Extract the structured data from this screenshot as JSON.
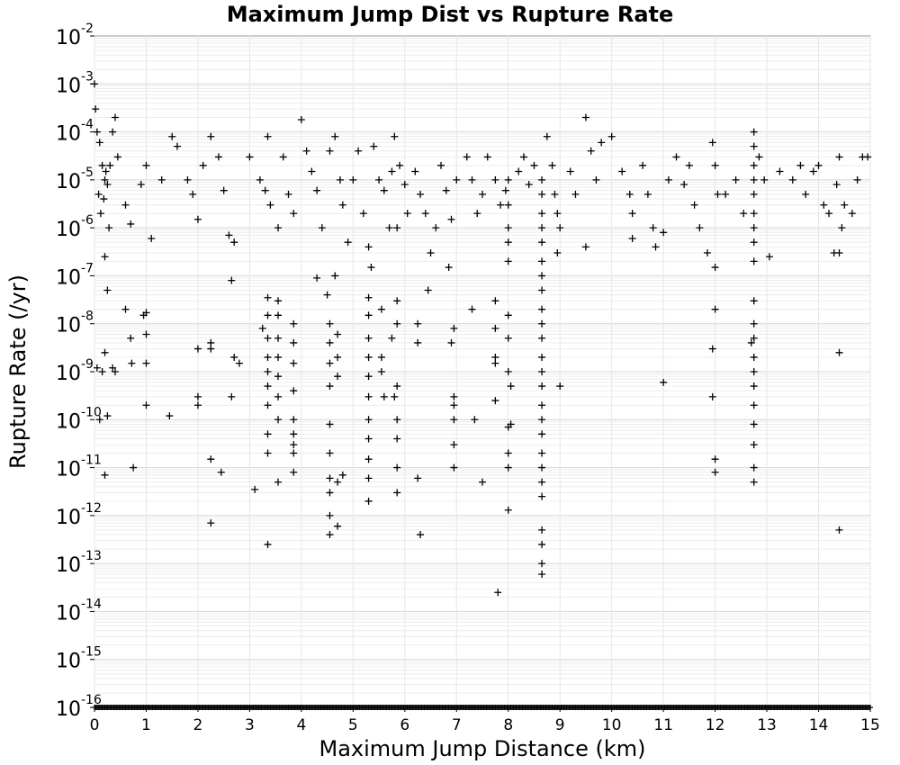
{
  "chart_data": {
    "type": "scatter",
    "title": "Maximum Jump Dist vs Rupture Rate",
    "xlabel": "Maximum Jump Distance (km)",
    "ylabel": "Rupture Rate (/yr)",
    "xlim": [
      0,
      15
    ],
    "ylim": [
      1e-16,
      0.01
    ],
    "yscale": "log",
    "grid": true,
    "legend": "none",
    "marker": "+",
    "marker_color": "#000000",
    "x_ticks": [
      "0",
      "1",
      "2",
      "3",
      "4",
      "5",
      "6",
      "7",
      "8",
      "9",
      "10",
      "11",
      "12",
      "13",
      "14",
      "15"
    ],
    "y_ticks": [
      {
        "base": "10",
        "exp": "-2"
      },
      {
        "base": "10",
        "exp": "-3"
      },
      {
        "base": "10",
        "exp": "-4"
      },
      {
        "base": "10",
        "exp": "-5"
      },
      {
        "base": "10",
        "exp": "-6"
      },
      {
        "base": "10",
        "exp": "-7"
      },
      {
        "base": "10",
        "exp": "-8"
      },
      {
        "base": "10",
        "exp": "-9"
      },
      {
        "base": "10",
        "exp": "-10"
      },
      {
        "base": "10",
        "exp": "-11"
      },
      {
        "base": "10",
        "exp": "-12"
      },
      {
        "base": "10",
        "exp": "-13"
      },
      {
        "base": "10",
        "exp": "-14"
      },
      {
        "base": "10",
        "exp": "-15"
      },
      {
        "base": "10",
        "exp": "-16"
      }
    ],
    "points": [
      [
        0.0,
        0.001
      ],
      [
        0.02,
        0.0003
      ],
      [
        0.05,
        0.0001
      ],
      [
        0.1,
        6e-05
      ],
      [
        0.15,
        2e-05
      ],
      [
        0.2,
        1e-05
      ],
      [
        0.25,
        8e-06
      ],
      [
        0.3,
        2e-05
      ],
      [
        0.35,
        0.0001
      ],
      [
        0.4,
        0.0002
      ],
      [
        0.45,
        3e-05
      ],
      [
        0.08,
        5e-06
      ],
      [
        0.18,
        4e-06
      ],
      [
        0.22,
        1.5e-05
      ],
      [
        0.28,
        1e-06
      ],
      [
        0.12,
        2e-06
      ],
      [
        0.2,
        2.5e-07
      ],
      [
        0.25,
        5e-08
      ],
      [
        0.6,
        3e-06
      ],
      [
        0.7,
        1.2e-06
      ],
      [
        0.9,
        8e-06
      ],
      [
        1.0,
        2e-05
      ],
      [
        1.1,
        6e-07
      ],
      [
        1.3,
        1e-05
      ],
      [
        0.05,
        1.2e-09
      ],
      [
        0.1,
        1e-10
      ],
      [
        0.15,
        1e-09
      ],
      [
        0.2,
        2.5e-09
      ],
      [
        0.25,
        1.2e-10
      ],
      [
        0.2,
        7e-12
      ],
      [
        0.35,
        1.2e-09
      ],
      [
        0.4,
        1e-09
      ],
      [
        0.6,
        2e-08
      ],
      [
        0.7,
        5e-09
      ],
      [
        0.72,
        1.5e-09
      ],
      [
        0.75,
        1e-11
      ],
      [
        0.95,
        1.5e-08
      ],
      [
        1.0,
        1.7e-08
      ],
      [
        1.0,
        6e-09
      ],
      [
        1.0,
        1.5e-09
      ],
      [
        1.0,
        2e-10
      ],
      [
        1.45,
        1.2e-10
      ],
      [
        1.5,
        8e-05
      ],
      [
        1.6,
        5e-05
      ],
      [
        1.8,
        1e-05
      ],
      [
        1.9,
        5e-06
      ],
      [
        2.0,
        1.5e-06
      ],
      [
        2.1,
        2e-05
      ],
      [
        2.25,
        8e-05
      ],
      [
        2.4,
        3e-05
      ],
      [
        2.5,
        6e-06
      ],
      [
        2.6,
        7e-07
      ],
      [
        2.7,
        5e-07
      ],
      [
        2.65,
        8e-08
      ],
      [
        2.0,
        3e-09
      ],
      [
        2.25,
        4e-09
      ],
      [
        2.25,
        3e-09
      ],
      [
        2.0,
        3e-10
      ],
      [
        2.0,
        2e-10
      ],
      [
        2.25,
        1.5e-11
      ],
      [
        2.45,
        8e-12
      ],
      [
        2.25,
        7e-13
      ],
      [
        2.65,
        3e-10
      ],
      [
        2.7,
        2e-09
      ],
      [
        2.8,
        1.5e-09
      ],
      [
        3.0,
        3e-05
      ],
      [
        3.2,
        1e-05
      ],
      [
        3.35,
        8e-05
      ],
      [
        3.4,
        3e-06
      ],
      [
        3.55,
        1e-06
      ],
      [
        3.65,
        3e-05
      ],
      [
        3.75,
        5e-06
      ],
      [
        3.85,
        2e-06
      ],
      [
        3.3,
        6e-06
      ],
      [
        3.35,
        3.5e-08
      ],
      [
        3.35,
        1.5e-08
      ],
      [
        3.35,
        5e-09
      ],
      [
        3.35,
        2e-09
      ],
      [
        3.35,
        1e-09
      ],
      [
        3.35,
        5e-10
      ],
      [
        3.35,
        2e-10
      ],
      [
        3.35,
        5e-11
      ],
      [
        3.35,
        2e-11
      ],
      [
        3.35,
        2.5e-13
      ],
      [
        3.25,
        8e-09
      ],
      [
        3.1,
        3.5e-12
      ],
      [
        3.55,
        3e-08
      ],
      [
        3.55,
        1.5e-08
      ],
      [
        3.55,
        5e-09
      ],
      [
        3.55,
        2e-09
      ],
      [
        3.55,
        8e-10
      ],
      [
        3.55,
        3e-10
      ],
      [
        3.55,
        1e-10
      ],
      [
        3.55,
        5e-12
      ],
      [
        3.85,
        1e-08
      ],
      [
        3.85,
        4e-09
      ],
      [
        3.85,
        1.5e-09
      ],
      [
        3.85,
        4e-10
      ],
      [
        3.85,
        1e-10
      ],
      [
        3.85,
        5e-11
      ],
      [
        3.85,
        2e-11
      ],
      [
        3.85,
        8e-12
      ],
      [
        3.85,
        3e-11
      ],
      [
        4.0,
        0.00018
      ],
      [
        4.1,
        4e-05
      ],
      [
        4.2,
        1.5e-05
      ],
      [
        4.3,
        6e-06
      ],
      [
        4.4,
        1e-06
      ],
      [
        4.55,
        4e-05
      ],
      [
        4.65,
        8e-05
      ],
      [
        4.75,
        1e-05
      ],
      [
        4.8,
        3e-06
      ],
      [
        4.9,
        5e-07
      ],
      [
        4.3,
        9e-08
      ],
      [
        4.65,
        1e-07
      ],
      [
        4.5,
        4e-08
      ],
      [
        4.55,
        1e-08
      ],
      [
        4.55,
        4e-09
      ],
      [
        4.55,
        1.5e-09
      ],
      [
        4.55,
        5e-10
      ],
      [
        4.55,
        8e-11
      ],
      [
        4.55,
        2e-11
      ],
      [
        4.55,
        6e-12
      ],
      [
        4.55,
        3e-12
      ],
      [
        4.55,
        1e-12
      ],
      [
        4.55,
        4e-13
      ],
      [
        4.7,
        6e-09
      ],
      [
        4.7,
        2e-09
      ],
      [
        4.7,
        8e-10
      ],
      [
        4.7,
        5e-12
      ],
      [
        4.8,
        7e-12
      ],
      [
        4.7,
        6e-13
      ],
      [
        5.0,
        1e-05
      ],
      [
        5.1,
        4e-05
      ],
      [
        5.2,
        2e-06
      ],
      [
        5.3,
        4e-07
      ],
      [
        5.35,
        1.5e-07
      ],
      [
        5.4,
        5e-05
      ],
      [
        5.5,
        1e-05
      ],
      [
        5.6,
        6e-06
      ],
      [
        5.7,
        1e-06
      ],
      [
        5.3,
        3.5e-08
      ],
      [
        5.3,
        1.5e-08
      ],
      [
        5.3,
        5e-09
      ],
      [
        5.3,
        2e-09
      ],
      [
        5.3,
        8e-10
      ],
      [
        5.3,
        3e-10
      ],
      [
        5.3,
        1e-10
      ],
      [
        5.3,
        4e-11
      ],
      [
        5.3,
        1.5e-11
      ],
      [
        5.3,
        6e-12
      ],
      [
        5.3,
        2e-12
      ],
      [
        5.55,
        2e-08
      ],
      [
        5.55,
        2e-09
      ],
      [
        5.55,
        1e-09
      ],
      [
        5.6,
        3e-10
      ],
      [
        5.8,
        8e-05
      ],
      [
        5.9,
        2e-05
      ],
      [
        6.0,
        8e-06
      ],
      [
        6.05,
        2e-06
      ],
      [
        5.75,
        1.5e-05
      ],
      [
        5.85,
        1e-06
      ],
      [
        5.85,
        3e-08
      ],
      [
        5.85,
        1e-08
      ],
      [
        5.75,
        5e-09
      ],
      [
        5.8,
        3e-10
      ],
      [
        5.85,
        5e-10
      ],
      [
        5.85,
        1e-10
      ],
      [
        5.85,
        4e-11
      ],
      [
        5.85,
        1e-11
      ],
      [
        5.85,
        3e-12
      ],
      [
        6.2,
        1.5e-05
      ],
      [
        6.3,
        5e-06
      ],
      [
        6.4,
        2e-06
      ],
      [
        6.5,
        3e-07
      ],
      [
        6.6,
        1e-06
      ],
      [
        6.7,
        2e-05
      ],
      [
        6.8,
        6e-06
      ],
      [
        6.9,
        1.5e-06
      ],
      [
        7.0,
        1e-05
      ],
      [
        6.25,
        1e-08
      ],
      [
        6.25,
        4e-09
      ],
      [
        6.25,
        6e-12
      ],
      [
        6.3,
        4e-13
      ],
      [
        6.45,
        5e-08
      ],
      [
        6.85,
        1.5e-07
      ],
      [
        6.9,
        4e-09
      ],
      [
        6.95,
        8e-09
      ],
      [
        6.95,
        3e-10
      ],
      [
        6.95,
        1e-10
      ],
      [
        6.95,
        3e-11
      ],
      [
        6.95,
        1e-11
      ],
      [
        6.95,
        2e-10
      ],
      [
        7.2,
        3e-05
      ],
      [
        7.3,
        1e-05
      ],
      [
        7.4,
        2e-06
      ],
      [
        7.5,
        5e-06
      ],
      [
        7.6,
        3e-05
      ],
      [
        7.75,
        1e-05
      ],
      [
        7.85,
        3e-06
      ],
      [
        7.95,
        6e-06
      ],
      [
        7.3,
        2e-08
      ],
      [
        7.35,
        1e-10
      ],
      [
        7.5,
        5e-12
      ],
      [
        7.75,
        3e-08
      ],
      [
        7.75,
        8e-09
      ],
      [
        7.75,
        2e-09
      ],
      [
        7.75,
        1.5e-09
      ],
      [
        7.75,
        2.5e-10
      ],
      [
        7.8,
        2.5e-14
      ],
      [
        8.0,
        1e-05
      ],
      [
        8.0,
        3e-06
      ],
      [
        8.0,
        1e-06
      ],
      [
        8.0,
        5e-07
      ],
      [
        8.0,
        2e-07
      ],
      [
        8.0,
        1.5e-08
      ],
      [
        8.0,
        5e-09
      ],
      [
        8.0,
        1e-09
      ],
      [
        8.05,
        5e-10
      ],
      [
        8.0,
        7e-11
      ],
      [
        8.0,
        2e-11
      ],
      [
        8.0,
        1e-11
      ],
      [
        8.0,
        1.3e-12
      ],
      [
        8.05,
        8e-11
      ],
      [
        8.2,
        1.5e-05
      ],
      [
        8.3,
        3e-05
      ],
      [
        8.4,
        8e-06
      ],
      [
        8.5,
        2e-05
      ],
      [
        8.65,
        1e-05
      ],
      [
        8.65,
        5e-06
      ],
      [
        8.65,
        2e-06
      ],
      [
        8.65,
        1e-06
      ],
      [
        8.65,
        5e-07
      ],
      [
        8.65,
        2e-07
      ],
      [
        8.65,
        1e-07
      ],
      [
        8.65,
        5e-08
      ],
      [
        8.65,
        2e-08
      ],
      [
        8.65,
        1e-08
      ],
      [
        8.65,
        5e-09
      ],
      [
        8.65,
        2e-09
      ],
      [
        8.65,
        1e-09
      ],
      [
        8.65,
        5e-10
      ],
      [
        8.65,
        2e-10
      ],
      [
        8.65,
        1e-10
      ],
      [
        8.65,
        5e-11
      ],
      [
        8.65,
        2e-11
      ],
      [
        8.65,
        1e-11
      ],
      [
        8.65,
        5e-12
      ],
      [
        8.65,
        2.5e-12
      ],
      [
        8.65,
        5e-13
      ],
      [
        8.65,
        2.5e-13
      ],
      [
        8.65,
        1e-13
      ],
      [
        8.65,
        6e-14
      ],
      [
        8.75,
        8e-05
      ],
      [
        8.85,
        2e-05
      ],
      [
        8.9,
        5e-06
      ],
      [
        9.0,
        1e-06
      ],
      [
        8.95,
        3e-07
      ],
      [
        9.0,
        5e-10
      ],
      [
        8.95,
        2e-06
      ],
      [
        9.2,
        1.5e-05
      ],
      [
        9.3,
        5e-06
      ],
      [
        9.5,
        0.0002
      ],
      [
        9.6,
        4e-05
      ],
      [
        9.5,
        4e-07
      ],
      [
        9.7,
        1e-05
      ],
      [
        9.8,
        6e-05
      ],
      [
        10.0,
        8e-05
      ],
      [
        10.2,
        1.5e-05
      ],
      [
        10.35,
        5e-06
      ],
      [
        10.4,
        2e-06
      ],
      [
        10.4,
        6e-07
      ],
      [
        10.6,
        2e-05
      ],
      [
        10.7,
        5e-06
      ],
      [
        10.8,
        1e-06
      ],
      [
        10.85,
        4e-07
      ],
      [
        11.0,
        8e-07
      ],
      [
        11.1,
        1e-05
      ],
      [
        11.25,
        3e-05
      ],
      [
        11.4,
        8e-06
      ],
      [
        11.5,
        2e-05
      ],
      [
        11.0,
        6e-10
      ],
      [
        11.6,
        3e-06
      ],
      [
        11.7,
        1e-06
      ],
      [
        11.85,
        3e-07
      ],
      [
        11.95,
        6e-05
      ],
      [
        12.0,
        2e-05
      ],
      [
        12.05,
        5e-06
      ],
      [
        12.0,
        1.5e-07
      ],
      [
        12.0,
        2e-08
      ],
      [
        11.95,
        3e-09
      ],
      [
        11.95,
        3e-10
      ],
      [
        12.0,
        1.5e-11
      ],
      [
        12.0,
        8e-12
      ],
      [
        12.2,
        5e-06
      ],
      [
        12.4,
        1e-05
      ],
      [
        12.55,
        2e-06
      ],
      [
        12.75,
        0.0001
      ],
      [
        12.75,
        5e-05
      ],
      [
        12.75,
        2e-05
      ],
      [
        12.75,
        1e-05
      ],
      [
        12.75,
        5e-06
      ],
      [
        12.75,
        2e-06
      ],
      [
        12.75,
        1e-06
      ],
      [
        12.75,
        5e-07
      ],
      [
        12.75,
        2e-07
      ],
      [
        12.75,
        3e-08
      ],
      [
        12.75,
        1e-08
      ],
      [
        12.75,
        5e-09
      ],
      [
        12.75,
        2e-09
      ],
      [
        12.75,
        1e-09
      ],
      [
        12.75,
        5e-10
      ],
      [
        12.75,
        2e-10
      ],
      [
        12.75,
        8e-11
      ],
      [
        12.75,
        3e-11
      ],
      [
        12.75,
        1e-11
      ],
      [
        12.75,
        5e-12
      ],
      [
        12.7,
        4e-09
      ],
      [
        12.85,
        3e-05
      ],
      [
        12.95,
        1e-05
      ],
      [
        13.05,
        2.5e-07
      ],
      [
        13.25,
        1.5e-05
      ],
      [
        13.5,
        1e-05
      ],
      [
        13.65,
        2e-05
      ],
      [
        13.75,
        5e-06
      ],
      [
        13.9,
        1.5e-05
      ],
      [
        14.0,
        2e-05
      ],
      [
        14.1,
        3e-06
      ],
      [
        14.2,
        2e-06
      ],
      [
        14.3,
        3e-07
      ],
      [
        14.35,
        8e-06
      ],
      [
        14.4,
        3e-05
      ],
      [
        14.45,
        1e-06
      ],
      [
        14.5,
        3e-06
      ],
      [
        14.4,
        3e-07
      ],
      [
        14.65,
        2e-06
      ],
      [
        14.75,
        1e-05
      ],
      [
        14.85,
        3e-05
      ],
      [
        14.95,
        3e-05
      ],
      [
        14.4,
        2.5e-09
      ],
      [
        14.4,
        5e-13
      ]
    ]
  }
}
